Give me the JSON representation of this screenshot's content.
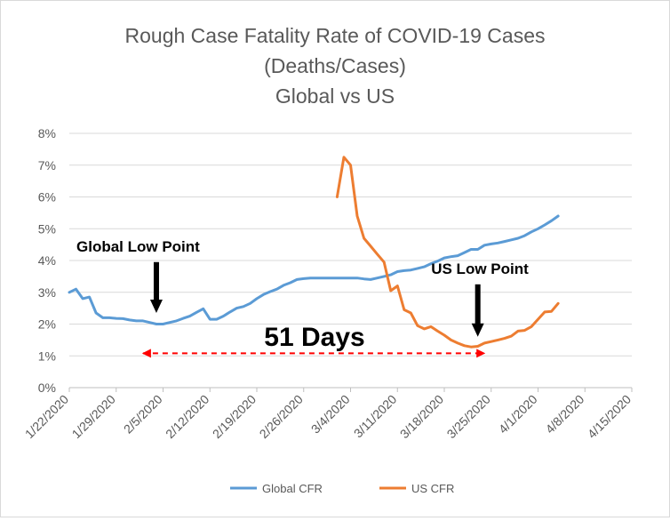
{
  "chart_data": {
    "type": "line",
    "title_lines": [
      "Rough Case Fatality Rate of COVID-19 Cases",
      "(Deaths/Cases)",
      "Global vs US"
    ],
    "y_ticks": [
      "0%",
      "1%",
      "2%",
      "3%",
      "4%",
      "5%",
      "6%",
      "7%",
      "8%"
    ],
    "ylim": [
      0,
      0.08
    ],
    "x_ticks": [
      "1/22/2020",
      "1/29/2020",
      "2/5/2020",
      "2/12/2020",
      "2/19/2020",
      "2/26/2020",
      "3/4/2020",
      "3/11/2020",
      "3/18/2020",
      "3/25/2020",
      "4/1/2020",
      "4/8/2020",
      "4/15/2020"
    ],
    "xlim": [
      "1/22/2020",
      "4/15/2020"
    ],
    "grid": "horizontal",
    "legend_position": "bottom",
    "series": [
      {
        "name": "Global CFR",
        "color": "#5b9bd5",
        "points": [
          [
            "1/22/2020",
            0.03
          ],
          [
            "1/23/2020",
            0.031
          ],
          [
            "1/24/2020",
            0.028
          ],
          [
            "1/25/2020",
            0.0285
          ],
          [
            "1/26/2020",
            0.0235
          ],
          [
            "1/27/2020",
            0.022
          ],
          [
            "1/28/2020",
            0.022
          ],
          [
            "1/29/2020",
            0.0218
          ],
          [
            "1/30/2020",
            0.0217
          ],
          [
            "1/31/2020",
            0.0213
          ],
          [
            "2/1/2020",
            0.021
          ],
          [
            "2/2/2020",
            0.021
          ],
          [
            "2/3/2020",
            0.0205
          ],
          [
            "2/4/2020",
            0.02
          ],
          [
            "2/5/2020",
            0.02
          ],
          [
            "2/6/2020",
            0.0205
          ],
          [
            "2/7/2020",
            0.021
          ],
          [
            "2/8/2020",
            0.0218
          ],
          [
            "2/9/2020",
            0.0225
          ],
          [
            "2/10/2020",
            0.0237
          ],
          [
            "2/11/2020",
            0.0248
          ],
          [
            "2/12/2020",
            0.0215
          ],
          [
            "2/13/2020",
            0.0215
          ],
          [
            "2/14/2020",
            0.0225
          ],
          [
            "2/15/2020",
            0.0238
          ],
          [
            "2/16/2020",
            0.025
          ],
          [
            "2/17/2020",
            0.0255
          ],
          [
            "2/18/2020",
            0.0265
          ],
          [
            "2/19/2020",
            0.028
          ],
          [
            "2/20/2020",
            0.0293
          ],
          [
            "2/21/2020",
            0.0302
          ],
          [
            "2/22/2020",
            0.031
          ],
          [
            "2/23/2020",
            0.0322
          ],
          [
            "2/24/2020",
            0.033
          ],
          [
            "2/25/2020",
            0.034
          ],
          [
            "2/26/2020",
            0.0343
          ],
          [
            "2/27/2020",
            0.0345
          ],
          [
            "2/28/2020",
            0.0345
          ],
          [
            "2/29/2020",
            0.0345
          ],
          [
            "3/1/2020",
            0.0345
          ],
          [
            "3/2/2020",
            0.0345
          ],
          [
            "3/3/2020",
            0.0345
          ],
          [
            "3/4/2020",
            0.0345
          ],
          [
            "3/5/2020",
            0.0345
          ],
          [
            "3/6/2020",
            0.0342
          ],
          [
            "3/7/2020",
            0.034
          ],
          [
            "3/8/2020",
            0.0345
          ],
          [
            "3/9/2020",
            0.035
          ],
          [
            "3/10/2020",
            0.0355
          ],
          [
            "3/11/2020",
            0.0365
          ],
          [
            "3/12/2020",
            0.0368
          ],
          [
            "3/13/2020",
            0.037
          ],
          [
            "3/14/2020",
            0.0375
          ],
          [
            "3/15/2020",
            0.038
          ],
          [
            "3/16/2020",
            0.039
          ],
          [
            "3/17/2020",
            0.0398
          ],
          [
            "3/18/2020",
            0.0408
          ],
          [
            "3/19/2020",
            0.0412
          ],
          [
            "3/20/2020",
            0.0415
          ],
          [
            "3/21/2020",
            0.0425
          ],
          [
            "3/22/2020",
            0.0435
          ],
          [
            "3/23/2020",
            0.0435
          ],
          [
            "3/24/2020",
            0.0448
          ],
          [
            "3/25/2020",
            0.0452
          ],
          [
            "3/26/2020",
            0.0455
          ],
          [
            "3/27/2020",
            0.046
          ],
          [
            "3/28/2020",
            0.0465
          ],
          [
            "3/29/2020",
            0.047
          ],
          [
            "3/30/2020",
            0.0478
          ],
          [
            "3/31/2020",
            0.049
          ],
          [
            "4/1/2020",
            0.05
          ],
          [
            "4/2/2020",
            0.0512
          ],
          [
            "4/3/2020",
            0.0525
          ],
          [
            "4/4/2020",
            0.054
          ]
        ]
      },
      {
        "name": "US CFR",
        "color": "#ed7d31",
        "points": [
          [
            "3/2/2020",
            0.06
          ],
          [
            "3/3/2020",
            0.0725
          ],
          [
            "3/4/2020",
            0.07
          ],
          [
            "3/5/2020",
            0.054
          ],
          [
            "3/6/2020",
            0.047
          ],
          [
            "3/7/2020",
            0.0445
          ],
          [
            "3/8/2020",
            0.042
          ],
          [
            "3/9/2020",
            0.0395
          ],
          [
            "3/10/2020",
            0.0305
          ],
          [
            "3/11/2020",
            0.032
          ],
          [
            "3/12/2020",
            0.0245
          ],
          [
            "3/13/2020",
            0.0235
          ],
          [
            "3/14/2020",
            0.0195
          ],
          [
            "3/15/2020",
            0.0185
          ],
          [
            "3/16/2020",
            0.0192
          ],
          [
            "3/17/2020",
            0.0178
          ],
          [
            "3/18/2020",
            0.0165
          ],
          [
            "3/19/2020",
            0.015
          ],
          [
            "3/20/2020",
            0.014
          ],
          [
            "3/21/2020",
            0.0132
          ],
          [
            "3/22/2020",
            0.0128
          ],
          [
            "3/23/2020",
            0.013
          ],
          [
            "3/24/2020",
            0.014
          ],
          [
            "3/25/2020",
            0.0145
          ],
          [
            "3/26/2020",
            0.015
          ],
          [
            "3/27/2020",
            0.0155
          ],
          [
            "3/28/2020",
            0.0162
          ],
          [
            "3/29/2020",
            0.0178
          ],
          [
            "3/30/2020",
            0.018
          ],
          [
            "3/31/2020",
            0.0192
          ],
          [
            "4/1/2020",
            0.0215
          ],
          [
            "4/2/2020",
            0.0238
          ],
          [
            "4/3/2020",
            0.024
          ],
          [
            "4/4/2020",
            0.0265
          ]
        ]
      }
    ],
    "annotations": [
      {
        "text": "Global Low Point",
        "arrow_date": "2/4/2020",
        "arrow_from": 0.0395,
        "arrow_to": 0.0235
      },
      {
        "text": "US Low Point",
        "arrow_date": "3/23/2020",
        "arrow_from": 0.0325,
        "arrow_to": 0.016
      },
      {
        "text": "51 Days",
        "span_from": "2/2/2020",
        "span_to": "3/24/2020",
        "y": 0.0108,
        "color": "#ff0000"
      }
    ]
  }
}
